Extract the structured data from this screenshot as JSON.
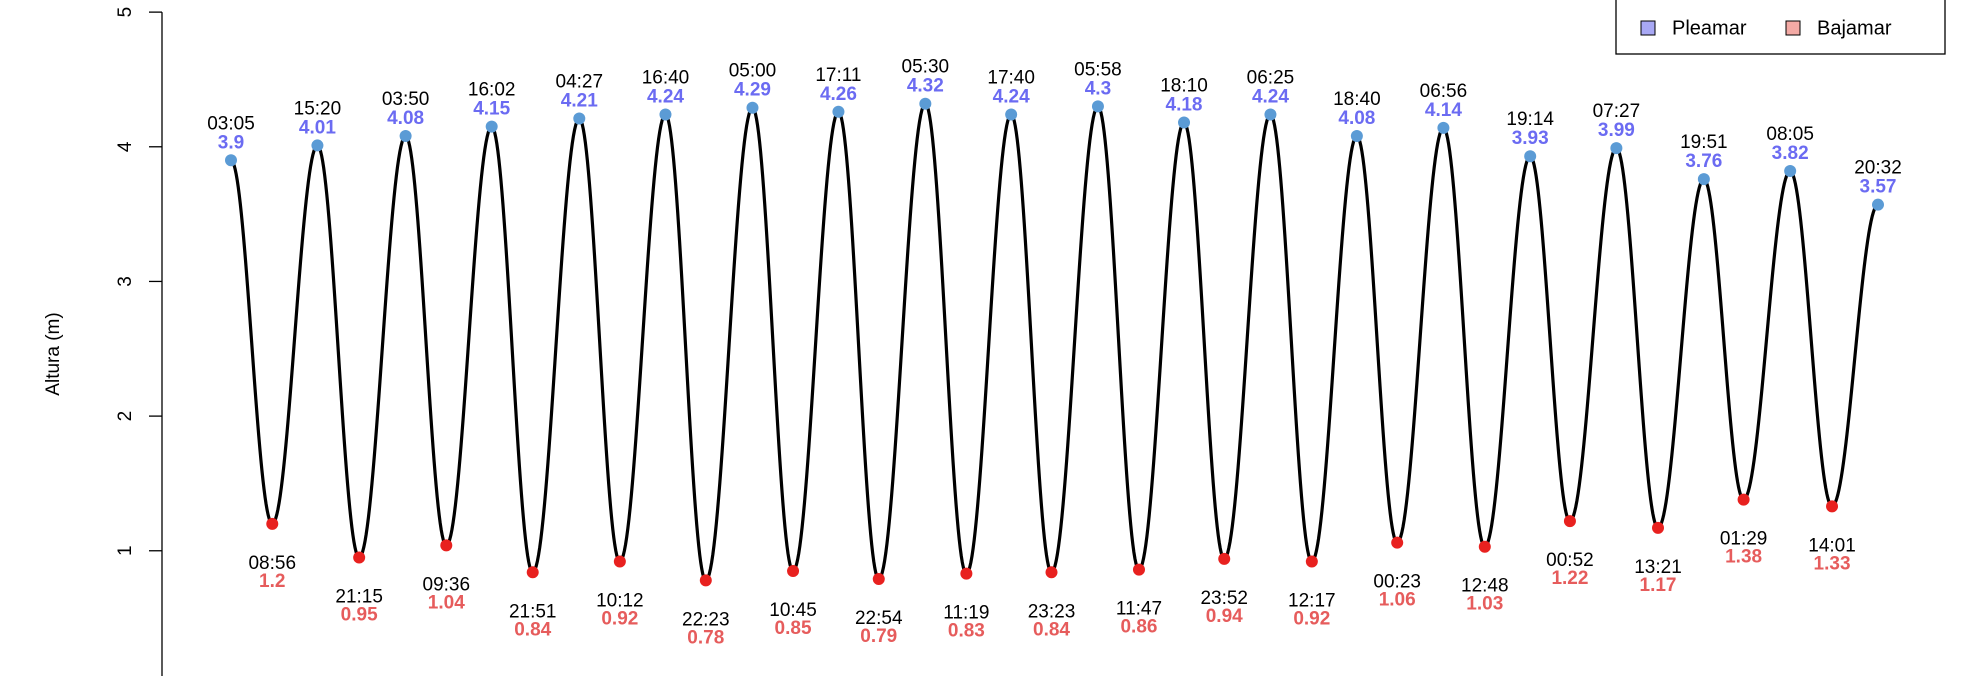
{
  "chart_data": {
    "type": "tide",
    "y_label": "Altura (m)",
    "ylim": [
      0.07,
      5.09
    ],
    "yticks": [
      1,
      2,
      3,
      4,
      5
    ],
    "legend": "topright",
    "line_color": "#000000",
    "series": [
      {
        "name": "Pleamar",
        "color": "#6b6bf2",
        "legend_color": "#a8a8f4",
        "point_color": "#5b9bd5",
        "times": [
          "03:05",
          "15:20",
          "03:50",
          "16:02",
          "04:27",
          "16:40",
          "05:00",
          "17:11",
          "05:30",
          "17:40",
          "05:58",
          "18:10",
          "06:25",
          "18:40",
          "06:56",
          "19:14",
          "07:27",
          "19:51",
          "08:05",
          "20:32"
        ],
        "values": [
          3.9,
          4.01,
          4.08,
          4.15,
          4.21,
          4.24,
          4.29,
          4.26,
          4.32,
          4.24,
          4.3,
          4.18,
          4.24,
          4.08,
          4.14,
          3.93,
          3.99,
          3.76,
          3.82,
          3.57
        ]
      },
      {
        "name": "Bajamar",
        "color": "#e65c5c",
        "legend_color": "#f4aaa5",
        "point_color": "#e8211f",
        "times": [
          "08:56",
          "21:15",
          "09:36",
          "21:51",
          "10:12",
          "22:23",
          "10:45",
          "22:54",
          "11:19",
          "23:23",
          "11:47",
          "23:52",
          "12:17",
          "00:23",
          "12:48",
          "00:52",
          "13:21",
          "01:29",
          "14:01"
        ],
        "values": [
          1.2,
          0.95,
          1.04,
          0.84,
          0.92,
          0.78,
          0.85,
          0.79,
          0.83,
          0.84,
          0.86,
          0.94,
          0.92,
          1.06,
          1.03,
          1.22,
          1.17,
          1.38,
          1.33
        ]
      }
    ]
  }
}
